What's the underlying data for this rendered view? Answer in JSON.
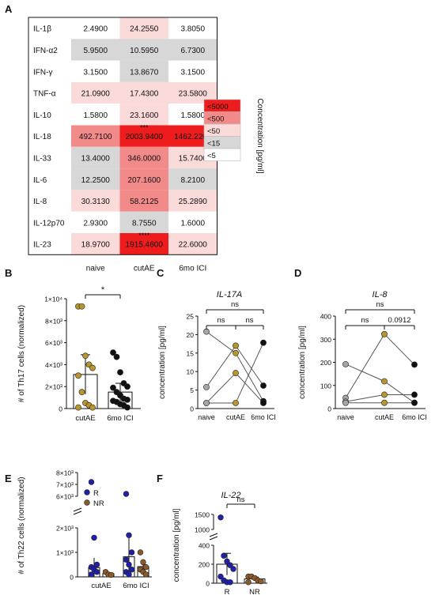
{
  "chart_data": [
    {
      "panel": "A",
      "type": "heatmap",
      "columns": [
        "naive",
        "cutAE",
        "6mo ICI"
      ],
      "rows": [
        "IL-1β",
        "IFN-α2",
        "IFN-γ",
        "TNF-α",
        "IL-10",
        "IL-18",
        "IL-33",
        "IL-6",
        "IL-8",
        "IL-12p70",
        "IL-23"
      ],
      "values": [
        [
          "2.4900",
          "24.2550",
          "3.8050"
        ],
        [
          "5.9500",
          "10.5950",
          "6.7300"
        ],
        [
          "3.1500",
          "13.8670",
          "3.1500"
        ],
        [
          "21.0900",
          "17.4300",
          "23.5800"
        ],
        [
          "1.5800",
          "23.1600",
          "1.5800"
        ],
        [
          "492.7100",
          "2003.9400",
          "1462.2200"
        ],
        [
          "13.4000",
          "346.0000",
          "15.7400"
        ],
        [
          "12.2500",
          "207.1600",
          "8.2100"
        ],
        [
          "30.3130",
          "58.2125",
          "25.2890"
        ],
        [
          "2.9300",
          "8.7550",
          "1.6000"
        ],
        [
          "18.9700",
          "1915.4600",
          "22.6000"
        ]
      ],
      "annotations": [
        {
          "row": 5,
          "col": 1,
          "text": "***"
        },
        {
          "row": 10,
          "col": 1,
          "text": "****"
        }
      ],
      "legend_title": "Concentration [pg/ml]",
      "legend": [
        {
          "label": "<5000",
          "color": "#ee1c1c",
          "threshold": 5000
        },
        {
          "label": "<500",
          "color": "#f38a8a",
          "threshold": 500
        },
        {
          "label": "<50",
          "color": "#fbdada",
          "threshold": 50
        },
        {
          "label": "<15",
          "color": "#d7d7d7",
          "threshold": 15
        },
        {
          "label": "<5",
          "color": "#ffffff",
          "threshold": 5
        }
      ]
    },
    {
      "panel": "B",
      "type": "bar",
      "ylabel": "# of Th17 cells (normalized)",
      "ylim": [
        0,
        10000
      ],
      "yticks": [
        "0",
        "2×10³",
        "4×10³",
        "6×10³",
        "8×10³",
        "1×10⁴"
      ],
      "categories": [
        "cutAE",
        "6mo ICI"
      ],
      "means": [
        3100,
        1500
      ],
      "sd": [
        1800,
        800
      ],
      "points": [
        [
          9300,
          9300,
          4800,
          4000,
          3700,
          3000,
          1500,
          500,
          300,
          100,
          100
        ],
        [
          5100,
          4700,
          3300,
          2300,
          2000,
          1900,
          1500,
          1200,
          900,
          800,
          700,
          600,
          400,
          300,
          100
        ]
      ],
      "point_colors": [
        "#b8962e",
        "#111111"
      ],
      "significance": "*"
    },
    {
      "panel": "C",
      "type": "line",
      "title": "IL-17A",
      "ylabel": "concentration [pg/ml]",
      "ylim": [
        0,
        25
      ],
      "yticks": [
        "0",
        "5",
        "10",
        "15",
        "20",
        "25"
      ],
      "categories": [
        "naive",
        "cutAE",
        "6mo ICI"
      ],
      "category_colors": [
        "#a6a6a6",
        "#b8962e",
        "#111111"
      ],
      "series": [
        {
          "values": [
            20.8,
            15.0,
            2.0
          ]
        },
        {
          "values": [
            5.8,
            17.0,
            6.2
          ]
        },
        {
          "values": [
            1.5,
            9.6,
            1.5
          ]
        },
        {
          "values": [
            1.5,
            1.5,
            17.8
          ]
        }
      ],
      "comparisons": [
        {
          "from": 0,
          "to": 1,
          "label": "ns"
        },
        {
          "from": 1,
          "to": 2,
          "label": "ns"
        },
        {
          "from": 0,
          "to": 2,
          "label": "ns"
        }
      ]
    },
    {
      "panel": "D",
      "type": "line",
      "title": "IL-8",
      "ylabel": "concentration [pg/ml]",
      "ylim": [
        0,
        400
      ],
      "yticks": [
        "0",
        "100",
        "200",
        "300",
        "400"
      ],
      "categories": [
        "naive",
        "cutAE",
        "6mo ICI"
      ],
      "category_colors": [
        "#a6a6a6",
        "#b8962e",
        "#111111"
      ],
      "series": [
        {
          "values": [
            192,
            118,
            25
          ]
        },
        {
          "values": [
            46,
            322,
            190
          ]
        },
        {
          "values": [
            30,
            60,
            60
          ]
        },
        {
          "values": [
            25,
            25,
            25
          ]
        }
      ],
      "comparisons": [
        {
          "from": 0,
          "to": 1,
          "label": "ns"
        },
        {
          "from": 1,
          "to": 2,
          "label": "0.0912"
        },
        {
          "from": 0,
          "to": 2,
          "label": "ns"
        }
      ]
    },
    {
      "panel": "E",
      "type": "bar",
      "ylabel": "# of Th22 cells (normalized)",
      "yticks_lower": [
        "0",
        "1×10³",
        "2×10³"
      ],
      "yticks_upper": [
        "6×10³",
        "7×10³",
        "8×10³"
      ],
      "axis_break": [
        2000,
        6000
      ],
      "categories": [
        "cutAE",
        "6mo ICI"
      ],
      "series": [
        {
          "name": "R",
          "color": "#1f1fa8",
          "means": [
            380,
            820
          ],
          "sd": [
            400,
            900
          ],
          "points": [
            [
              7200,
              1600,
              500,
              400,
              300,
              200,
              100
            ],
            [
              6200,
              1700,
              1000,
              700,
              500,
              300,
              200,
              100
            ]
          ]
        },
        {
          "name": "NR",
          "color": "#8b5a2b",
          "means": [
            130,
            420
          ],
          "sd": [
            60,
            300
          ],
          "points": [
            [
              200,
              100,
              80
            ],
            [
              1000,
              600,
              400,
              300,
              200,
              100
            ]
          ]
        }
      ]
    },
    {
      "panel": "F",
      "type": "bar",
      "title": "IL-22",
      "ylabel": "concentration [pg/ml]",
      "yticks_lower": [
        "0",
        "200",
        "400"
      ],
      "yticks_upper": [
        "1000",
        "1500"
      ],
      "axis_break": [
        450,
        900
      ],
      "categories": [
        "R",
        "NR"
      ],
      "category_colors": [
        "#1f1fa8",
        "#8b5a2b"
      ],
      "means": [
        200,
        45
      ],
      "sd": [
        115,
        20
      ],
      "points": [
        [
          1400,
          290,
          230,
          190,
          150,
          70,
          30,
          10,
          10
        ],
        [
          70,
          70,
          55,
          30,
          20,
          10
        ]
      ],
      "significance": "ns"
    }
  ],
  "panel_labels": [
    "A",
    "B",
    "C",
    "D",
    "E",
    "F"
  ]
}
